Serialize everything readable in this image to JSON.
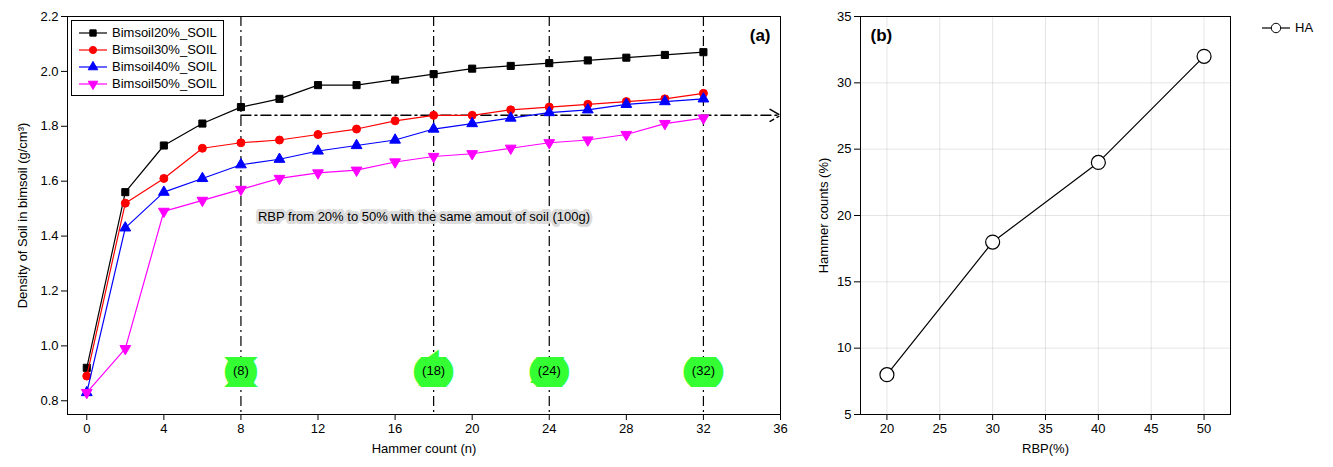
{
  "chart_data": [
    {
      "type": "line",
      "panel_label": "(a)",
      "x_label": "Hammer count (n)",
      "y_label": "Density of Soil in bimsoil (g/cm³)",
      "x": [
        0,
        2,
        4,
        6,
        8,
        10,
        12,
        14,
        16,
        18,
        20,
        22,
        24,
        26,
        28,
        30,
        32
      ],
      "series": [
        {
          "name": "Bimsoil20%_SOIL",
          "color": "#000000",
          "marker": "square",
          "values": [
            0.92,
            1.56,
            1.73,
            1.81,
            1.87,
            1.9,
            1.95,
            1.95,
            1.97,
            1.99,
            2.01,
            2.02,
            2.03,
            2.04,
            2.05,
            2.06,
            2.07
          ]
        },
        {
          "name": "Bimsoil30%_SOIL",
          "color": "#ff0000",
          "marker": "circle",
          "values": [
            0.89,
            1.52,
            1.61,
            1.72,
            1.74,
            1.75,
            1.77,
            1.79,
            1.82,
            1.84,
            1.84,
            1.86,
            1.87,
            1.88,
            1.89,
            1.9,
            1.92
          ]
        },
        {
          "name": "Bimsoil40%_SOIL",
          "color": "#0000ff",
          "marker": "triangle",
          "values": [
            0.83,
            1.43,
            1.56,
            1.61,
            1.66,
            1.68,
            1.71,
            1.73,
            1.75,
            1.79,
            1.81,
            1.83,
            1.85,
            1.86,
            1.88,
            1.89,
            1.9
          ]
        },
        {
          "name": "Bimsoil50%_SOIL",
          "color": "#ff00ff",
          "marker": "triangle_down",
          "values": [
            0.83,
            0.99,
            1.49,
            1.53,
            1.57,
            1.61,
            1.63,
            1.64,
            1.67,
            1.69,
            1.7,
            1.72,
            1.74,
            1.75,
            1.77,
            1.81,
            1.83
          ]
        }
      ],
      "xlim": [
        -1,
        36
      ],
      "xticks": [
        0,
        4,
        8,
        12,
        16,
        20,
        24,
        28,
        32,
        36
      ],
      "ylim": [
        0.75,
        2.2
      ],
      "yticks": [
        0.8,
        {
          "value": 1,
          "label": "1.0"
        },
        1.2,
        1.4,
        1.6,
        1.8,
        {
          "value": 2,
          "label": "2.0"
        },
        2.2
      ],
      "vlines": [
        8,
        18,
        24,
        32
      ],
      "arrow": {
        "x": [
          8,
          36
        ],
        "y": 1.84
      },
      "annotations": [
        {
          "text": "(8)",
          "x": 8,
          "y": 0.91,
          "color": "#33ff33"
        },
        {
          "text": "(18)",
          "x": 18,
          "y": 0.91,
          "color": "#33ff33"
        },
        {
          "text": "(24)",
          "x": 24,
          "y": 0.91,
          "color": "#33ff33"
        },
        {
          "text": "(32)",
          "x": 32,
          "y": 0.91,
          "color": "#33ff33"
        },
        {
          "text": "RBP from 20% to 50% with the same amout of soil (100g)",
          "x": 17.5,
          "y": 1.47
        }
      ],
      "legend": "upper left",
      "grid": false
    },
    {
      "type": "line",
      "panel_label": "(b)",
      "x_label": "RBP(%)",
      "y_label": "Hammer counts (%)",
      "x": [
        20,
        30,
        40,
        50
      ],
      "series": [
        {
          "name": "HA",
          "color": "#000000",
          "marker": "open_circle",
          "values": [
            8,
            18,
            24,
            32
          ]
        }
      ],
      "xlim": [
        17.5,
        52.5
      ],
      "xticks": [
        20,
        25,
        30,
        35,
        40,
        45,
        50
      ],
      "ylim": [
        5,
        35
      ],
      "yticks": [
        5,
        10,
        15,
        20,
        25,
        30,
        35
      ],
      "legend": "right",
      "grid": true
    }
  ]
}
